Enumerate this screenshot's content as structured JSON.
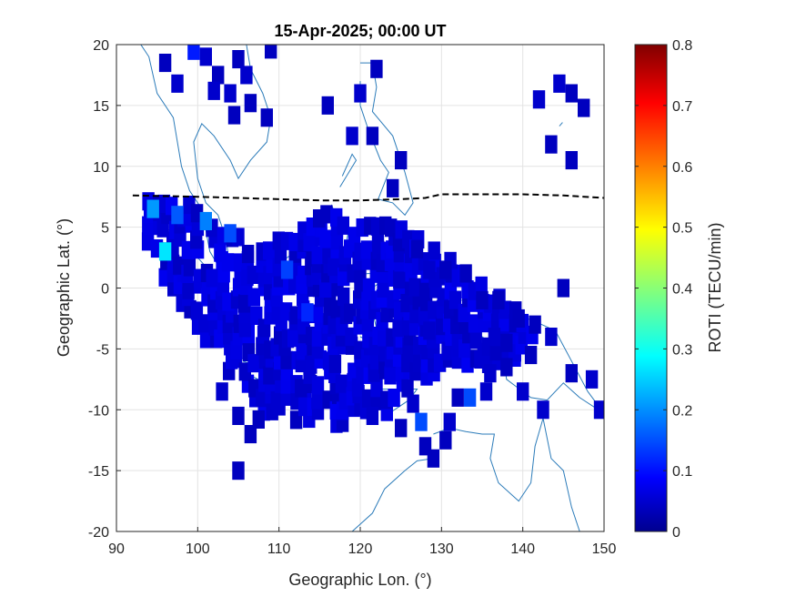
{
  "chart_data": {
    "type": "heatmap",
    "title": "15-Apr-2025; 00:00 UT",
    "xlabel": "Geographic Lon. (°)",
    "ylabel": "Geographic Lat. (°)",
    "xlim": [
      90,
      150
    ],
    "ylim": [
      -20,
      20
    ],
    "xticks": [
      "90",
      "100",
      "110",
      "120",
      "130",
      "140",
      "150"
    ],
    "yticks": [
      "20",
      "15",
      "10",
      "5",
      "0",
      "-5",
      "-10",
      "-15",
      "-20"
    ],
    "grid": true,
    "colorbar": {
      "label": "ROTI (TECU/min)",
      "range": [
        0,
        0.8
      ],
      "ticks": [
        "0",
        "0.1",
        "0.2",
        "0.3",
        "0.4",
        "0.5",
        "0.6",
        "0.7",
        "0.8"
      ],
      "colormap": "jet"
    },
    "magnetic_equator": {
      "style": "dashed",
      "color": "#000000",
      "lon": [
        92,
        100,
        105,
        110,
        115,
        120,
        125,
        128,
        130,
        135,
        140,
        145,
        150
      ],
      "lat": [
        7.6,
        7.5,
        7.4,
        7.3,
        7.2,
        7.2,
        7.3,
        7.4,
        7.7,
        7.7,
        7.7,
        7.6,
        7.4
      ]
    },
    "scattered_cells": [
      [
        96,
        18.5,
        0.05
      ],
      [
        97.5,
        16.8,
        0.06
      ],
      [
        99.5,
        19.5,
        0.12
      ],
      [
        101,
        19,
        0.06
      ],
      [
        102.5,
        17.5,
        0.05
      ],
      [
        102,
        16.2,
        0.06
      ],
      [
        104,
        16,
        0.06
      ],
      [
        105,
        18.8,
        0.05
      ],
      [
        104.5,
        14.2,
        0.05
      ],
      [
        106,
        17.5,
        0.06
      ],
      [
        106.5,
        15.2,
        0.05
      ],
      [
        108.5,
        14,
        0.05
      ],
      [
        109,
        19.6,
        0.05
      ],
      [
        116,
        15,
        0.05
      ],
      [
        120,
        16,
        0.06
      ],
      [
        122,
        18,
        0.05
      ],
      [
        119,
        12.5,
        0.06
      ],
      [
        121.5,
        12.5,
        0.05
      ],
      [
        125,
        10.5,
        0.05
      ],
      [
        124,
        8.2,
        0.05
      ],
      [
        142,
        15.5,
        0.06
      ],
      [
        144.5,
        16.8,
        0.06
      ],
      [
        146,
        16,
        0.05
      ],
      [
        147.5,
        14.8,
        0.05
      ],
      [
        143.5,
        11.8,
        0.05
      ],
      [
        146,
        10.5,
        0.05
      ],
      [
        145,
        0,
        0.05
      ],
      [
        148.5,
        -7.5,
        0.06
      ],
      [
        149.5,
        -10,
        0.06
      ],
      [
        146,
        -7,
        0.05
      ],
      [
        142.5,
        -10,
        0.06
      ],
      [
        140,
        -8.5,
        0.06
      ],
      [
        138,
        -6.5,
        0.05
      ],
      [
        136,
        -7,
        0.06
      ],
      [
        133.5,
        -9,
        0.16
      ],
      [
        135.5,
        -8.5,
        0.06
      ],
      [
        132,
        -9,
        0.05
      ],
      [
        131,
        -11,
        0.06
      ],
      [
        130.5,
        -12.5,
        0.05
      ],
      [
        129,
        -14,
        0.05
      ],
      [
        128,
        -13,
        0.05
      ],
      [
        126.5,
        -9.5,
        0.06
      ],
      [
        127.5,
        -11,
        0.16
      ],
      [
        125,
        -11.5,
        0.05
      ],
      [
        121.5,
        -10.5,
        0.06
      ],
      [
        103,
        -8.5,
        0.06
      ],
      [
        105,
        -10.5,
        0.05
      ],
      [
        106.5,
        -12,
        0.05
      ],
      [
        105,
        -15,
        0.05
      ],
      [
        107.5,
        -10.8,
        0.05
      ],
      [
        143.5,
        -4,
        0.06
      ],
      [
        141.5,
        -3,
        0.05
      ],
      [
        139.5,
        -2.5,
        0.05
      ],
      [
        141,
        -5.5,
        0.05
      ],
      [
        137,
        -1,
        0.05
      ],
      [
        135,
        -1,
        0.05
      ],
      [
        133,
        1.2,
        0.05
      ],
      [
        130.5,
        1.5,
        0.05
      ],
      [
        128.5,
        1.5,
        0.06
      ],
      [
        127,
        3.2,
        0.05
      ],
      [
        128.5,
        -3.5,
        0.06
      ],
      [
        136.5,
        -4,
        0.06
      ],
      [
        138,
        -4.5,
        0.05
      ]
    ],
    "cluster_region": {
      "lon": [
        93,
        95,
        98,
        101,
        104,
        108,
        112,
        116,
        120,
        124,
        128,
        132,
        136,
        140,
        142,
        140,
        136,
        132,
        128,
        124,
        120,
        116,
        112,
        108,
        104,
        100,
        97,
        94
      ],
      "lat": [
        6.5,
        7.5,
        8,
        6,
        4.5,
        3.5,
        4.5,
        6.5,
        5,
        6,
        4,
        1.5,
        0,
        -2.5,
        -4,
        -6,
        -6.5,
        -6,
        -7.5,
        -10,
        -11,
        -11,
        -11,
        -10.5,
        -7,
        -3,
        0,
        3
      ],
      "typical_roti": 0.07,
      "enhanced_spots": [
        [
          94.5,
          6.5,
          0.22
        ],
        [
          96,
          3,
          0.28
        ],
        [
          97.5,
          6,
          0.17
        ],
        [
          101,
          5.5,
          0.2
        ],
        [
          104,
          4.5,
          0.16
        ],
        [
          111,
          1.5,
          0.15
        ],
        [
          113.5,
          -2,
          0.13
        ]
      ]
    }
  }
}
